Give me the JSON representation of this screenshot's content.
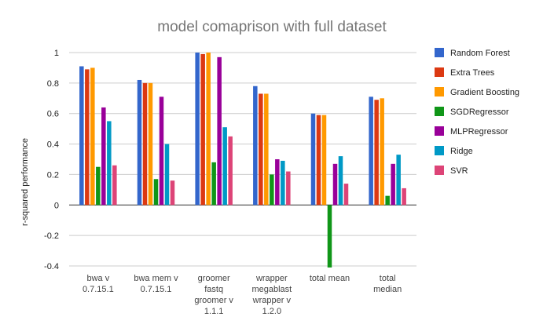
{
  "chart_data": {
    "type": "bar",
    "title": "model comaprison with full dataset",
    "xlabel": "",
    "ylabel": "r-squared performance",
    "ylim": [
      -0.4,
      1.0
    ],
    "yticks": [
      "1",
      "0.8",
      "0.6",
      "0.4",
      "0.2",
      "0",
      "-0.2",
      "-0.4"
    ],
    "ytick_values": [
      1.0,
      0.8,
      0.6,
      0.4,
      0.2,
      0,
      -0.2,
      -0.4
    ],
    "grid": true,
    "legend_position": "right",
    "categories": [
      [
        "bwa v",
        "0.7.15.1"
      ],
      [
        "bwa mem v",
        "0.7.15.1"
      ],
      [
        "groomer",
        "fastq",
        "groomer v",
        "1.1.1"
      ],
      [
        "wrapper",
        "megablast",
        "wrapper v",
        "1.2.0"
      ],
      [
        "total mean"
      ],
      [
        "total",
        "median"
      ]
    ],
    "series": [
      {
        "name": "Random Forest",
        "color": "#3366cc",
        "values": [
          0.91,
          0.82,
          1.0,
          0.78,
          0.6,
          0.71
        ]
      },
      {
        "name": "Extra Trees",
        "color": "#dc3912",
        "values": [
          0.89,
          0.8,
          0.99,
          0.73,
          0.59,
          0.69
        ]
      },
      {
        "name": "Gradient Boosting",
        "color": "#ff9900",
        "values": [
          0.9,
          0.8,
          1.0,
          0.73,
          0.59,
          0.7
        ]
      },
      {
        "name": "SGDRegressor",
        "color": "#109618",
        "values": [
          0.25,
          0.17,
          0.28,
          0.2,
          -0.41,
          0.06
        ]
      },
      {
        "name": "MLPRegressor",
        "color": "#990099",
        "values": [
          0.64,
          0.71,
          0.97,
          0.3,
          0.27,
          0.27
        ]
      },
      {
        "name": "Ridge",
        "color": "#0099c6",
        "values": [
          0.55,
          0.4,
          0.51,
          0.29,
          0.32,
          0.33
        ]
      },
      {
        "name": "SVR",
        "color": "#dd4477",
        "values": [
          0.26,
          0.16,
          0.45,
          0.22,
          0.14,
          0.11
        ]
      }
    ]
  }
}
